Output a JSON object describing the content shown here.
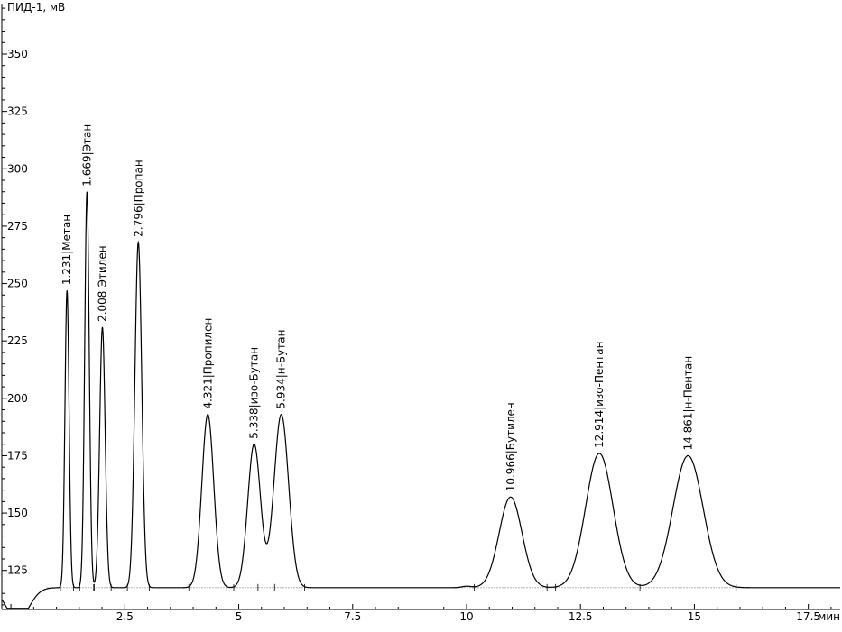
{
  "chart_data": {
    "type": "line",
    "title": "",
    "ylabel": "ПИД-1, мВ",
    "xlabel": "мин",
    "xlim": [
      -0.2,
      18.2
    ],
    "ylim": [
      108,
      372
    ],
    "x_ticks": [
      {
        "value": 2.5,
        "label": "2.5"
      },
      {
        "value": 5,
        "label": "5"
      },
      {
        "value": 7.5,
        "label": "7.5"
      },
      {
        "value": 10,
        "label": "10"
      },
      {
        "value": 12.5,
        "label": "12.5"
      },
      {
        "value": 15,
        "label": "15"
      },
      {
        "value": 17.5,
        "label": "17.5"
      }
    ],
    "y_ticks": [
      {
        "value": 125,
        "label": "125"
      },
      {
        "value": 150,
        "label": "150"
      },
      {
        "value": 175,
        "label": "175"
      },
      {
        "value": 200,
        "label": "200"
      },
      {
        "value": 225,
        "label": "225"
      },
      {
        "value": 250,
        "label": "250"
      },
      {
        "value": 275,
        "label": "275"
      },
      {
        "value": 300,
        "label": "300"
      },
      {
        "value": 325,
        "label": "325"
      },
      {
        "value": 350,
        "label": "350"
      }
    ],
    "baseline": 117.5,
    "peaks": [
      {
        "time": 1.231,
        "height": 247,
        "width": 0.045,
        "label": "1.231|Метан"
      },
      {
        "time": 1.669,
        "height": 290,
        "width": 0.05,
        "label": "1.669|Этан"
      },
      {
        "time": 2.008,
        "height": 231,
        "width": 0.06,
        "label": "2.008|Этилен"
      },
      {
        "time": 2.796,
        "height": 268,
        "width": 0.075,
        "label": "2.796|Пропан"
      },
      {
        "time": 4.321,
        "height": 193,
        "width": 0.13,
        "label": "4.321|Пропилен"
      },
      {
        "time": 5.338,
        "height": 180,
        "width": 0.14,
        "label": "5.338|изо-Бутан"
      },
      {
        "time": 5.934,
        "height": 193,
        "width": 0.16,
        "label": "5.934|н-Бутан"
      },
      {
        "time": 10.966,
        "height": 157,
        "width": 0.25,
        "label": "10.966|Бутилен"
      },
      {
        "time": 12.914,
        "height": 176,
        "width": 0.3,
        "label": "12.914|изо-Пентан"
      },
      {
        "time": 14.861,
        "height": 175,
        "width": 0.33,
        "label": "14.861|н-Пентан"
      }
    ],
    "grid": false,
    "legend": "none"
  }
}
